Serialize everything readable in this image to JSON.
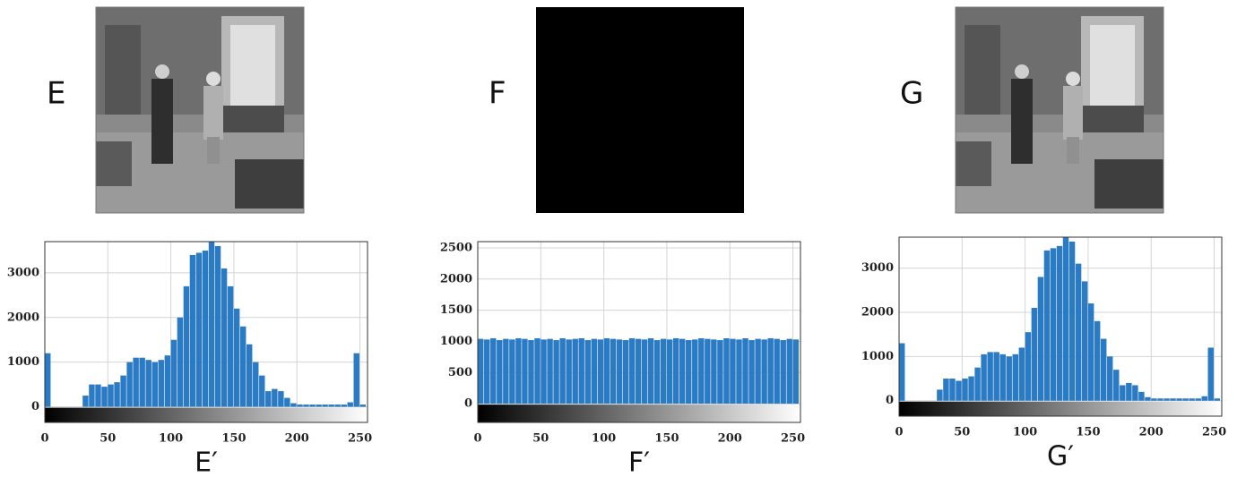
{
  "images": [
    {
      "label": "E"
    },
    {
      "label": "F"
    },
    {
      "label": "G"
    }
  ],
  "chart_data": [
    {
      "type": "histogram",
      "xlabel": "E′",
      "color": "#2a7bc4",
      "grid": true,
      "bins": [
        0,
        5,
        10,
        15,
        20,
        25,
        30,
        35,
        40,
        45,
        50,
        55,
        60,
        65,
        70,
        75,
        80,
        85,
        90,
        95,
        100,
        105,
        110,
        115,
        120,
        125,
        130,
        135,
        140,
        145,
        150,
        155,
        160,
        165,
        170,
        175,
        180,
        185,
        190,
        195,
        200,
        205,
        210,
        215,
        220,
        225,
        230,
        235,
        240,
        245,
        250,
        255
      ],
      "values": [
        1200,
        0,
        0,
        0,
        0,
        0,
        250,
        500,
        500,
        450,
        500,
        550,
        700,
        1000,
        1100,
        1100,
        1050,
        1000,
        1050,
        1150,
        1500,
        2000,
        2700,
        3400,
        3450,
        3500,
        3700,
        3600,
        3100,
        2700,
        2200,
        1800,
        1400,
        1000,
        700,
        350,
        400,
        350,
        200,
        80,
        50,
        50,
        50,
        50,
        50,
        50,
        50,
        50,
        100,
        1200,
        50
      ],
      "xlim": [
        0,
        256
      ],
      "ylim": [
        -350,
        3700
      ],
      "xticks": [
        0,
        50,
        100,
        150,
        200,
        250
      ],
      "yticks": [
        0,
        1000,
        2000,
        3000
      ]
    },
    {
      "type": "histogram",
      "xlabel": "F′",
      "color": "#2a7bc4",
      "grid": true,
      "bins": [
        0,
        5,
        10,
        15,
        20,
        25,
        30,
        35,
        40,
        45,
        50,
        55,
        60,
        65,
        70,
        75,
        80,
        85,
        90,
        95,
        100,
        105,
        110,
        115,
        120,
        125,
        130,
        135,
        140,
        145,
        150,
        155,
        160,
        165,
        170,
        175,
        180,
        185,
        190,
        195,
        200,
        205,
        210,
        215,
        220,
        225,
        230,
        235,
        240,
        245,
        250,
        255
      ],
      "values": [
        1040,
        1030,
        1050,
        1020,
        1040,
        1030,
        1050,
        1040,
        1020,
        1050,
        1030,
        1040,
        1020,
        1050,
        1030,
        1040,
        1050,
        1020,
        1040,
        1030,
        1050,
        1040,
        1030,
        1020,
        1050,
        1040,
        1030,
        1050,
        1020,
        1040,
        1030,
        1050,
        1040,
        1020,
        1030,
        1050,
        1040,
        1030,
        1020,
        1050,
        1040,
        1030,
        1050,
        1020,
        1040,
        1030,
        1050,
        1040,
        1020,
        1040,
        1030
      ],
      "xlim": [
        0,
        256
      ],
      "ylim": [
        -300,
        2600
      ],
      "xticks": [
        0,
        50,
        100,
        150,
        200,
        250
      ],
      "yticks": [
        0,
        500,
        1000,
        1500,
        2000,
        2500
      ]
    },
    {
      "type": "histogram",
      "xlabel": "G′",
      "color": "#2a7bc4",
      "grid": true,
      "bins": [
        0,
        5,
        10,
        15,
        20,
        25,
        30,
        35,
        40,
        45,
        50,
        55,
        60,
        65,
        70,
        75,
        80,
        85,
        90,
        95,
        100,
        105,
        110,
        115,
        120,
        125,
        130,
        135,
        140,
        145,
        150,
        155,
        160,
        165,
        170,
        175,
        180,
        185,
        190,
        195,
        200,
        205,
        210,
        215,
        220,
        225,
        230,
        235,
        240,
        245,
        250,
        255
      ],
      "values": [
        1300,
        0,
        0,
        0,
        0,
        0,
        250,
        500,
        500,
        450,
        500,
        550,
        750,
        1050,
        1100,
        1100,
        1050,
        1000,
        1050,
        1200,
        1550,
        2100,
        2800,
        3400,
        3450,
        3500,
        3700,
        3600,
        3100,
        2700,
        2200,
        1800,
        1400,
        1000,
        700,
        350,
        400,
        350,
        200,
        80,
        50,
        50,
        50,
        50,
        50,
        50,
        50,
        50,
        100,
        1200,
        50
      ],
      "xlim": [
        0,
        256
      ],
      "ylim": [
        -350,
        3700
      ],
      "xticks": [
        0,
        50,
        100,
        150,
        200,
        250
      ],
      "yticks": [
        0,
        1000,
        2000,
        3000
      ]
    }
  ]
}
